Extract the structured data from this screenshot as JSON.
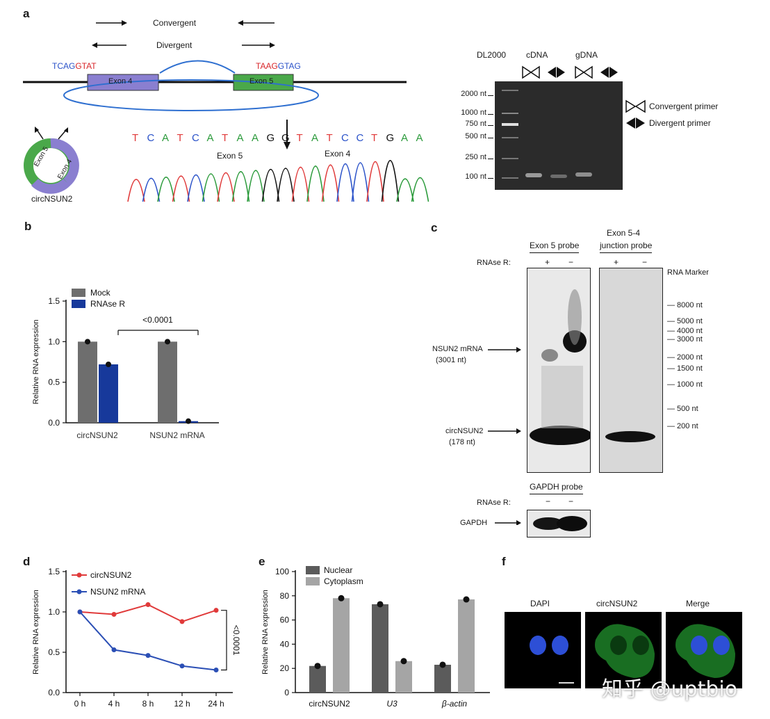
{
  "panels": {
    "a": "a",
    "b": "b",
    "c": "c",
    "d": "d",
    "e": "e",
    "f": "f"
  },
  "panel_a": {
    "convergent": "Convergent",
    "divergent": "Divergent",
    "seq_left": [
      "TCAG",
      "GTAT"
    ],
    "seq_right": [
      "TAAG",
      "GTAG"
    ],
    "exon4": "Exon 4",
    "exon5": "Exon 5",
    "circle_exon5": "Exon 5",
    "circle_exon4": "Exon 4",
    "circ_name": "circNSUN2",
    "sequence": [
      "T",
      "C",
      "A",
      "T",
      "C",
      "A",
      "T",
      "A",
      "A",
      "G",
      "G",
      "T",
      "A",
      "T",
      "C",
      "C",
      "T",
      "G",
      "A",
      "A"
    ],
    "chrom_exon5": "Exon 5",
    "chrom_exon4": "Exon 4",
    "gel_header": {
      "marker": "DL2000",
      "cdna": "cDNA",
      "gdna": "gDNA"
    },
    "gel_sizes": [
      "2000 nt",
      "1000 nt",
      "750 nt",
      "500 nt",
      "250 nt",
      "100 nt"
    ],
    "legend_convergent": "Convergent primer",
    "legend_divergent": "Divergent primer"
  },
  "panel_c": {
    "exon5_probe": "Exon 5 probe",
    "junction_probe_l1": "Exon 5-4",
    "junction_probe_l2": "junction probe",
    "rnase_label": "RNAse R:",
    "plus": "+",
    "minus": "−",
    "rna_marker": "RNA Marker",
    "sizes": [
      "8000 nt",
      "5000 nt",
      "4000 nt",
      "3000 nt",
      "2000 nt",
      "1500 nt",
      "1000 nt",
      "500 nt",
      "200 nt"
    ],
    "mrna_l1": "NSUN2 mRNA",
    "mrna_l2": "(3001 nt)",
    "circ_l1": "circNSUN2",
    "circ_l2": "(178 nt)",
    "gapdh_probe": "GAPDH probe",
    "gapdh_rnase": "RNAse R:",
    "gapdh": "GAPDH"
  },
  "panel_f": {
    "dapi": "DAPI",
    "circ": "circNSUN2",
    "merge": "Merge"
  },
  "watermark": "知乎 @uptbio",
  "chart_data": [
    {
      "id": "b",
      "type": "bar",
      "categories": [
        "circNSUN2",
        "NSUN2 mRNA"
      ],
      "series": [
        {
          "name": "Mock",
          "values": [
            1.0,
            1.0
          ],
          "color": "#6e6e6e"
        },
        {
          "name": "RNAse R",
          "values": [
            0.72,
            0.02
          ],
          "color": "#17399b"
        }
      ],
      "ylabel": "Relative RNA expression",
      "ylim": [
        0,
        1.5
      ],
      "yticks": [
        "0.0",
        "0.5",
        "1.0",
        "1.5"
      ],
      "annotation": "<0.0001",
      "legend": "top-left"
    },
    {
      "id": "d",
      "type": "line",
      "x": [
        "0 h",
        "4 h",
        "8 h",
        "12 h",
        "24 h"
      ],
      "series": [
        {
          "name": "circNSUN2",
          "values": [
            1.0,
            0.97,
            1.09,
            0.88,
            1.02
          ],
          "color": "#e03a3a"
        },
        {
          "name": "NSUN2 mRNA",
          "values": [
            1.0,
            0.53,
            0.46,
            0.33,
            0.28
          ],
          "color": "#2b4fb5"
        }
      ],
      "ylabel": "Relative RNA expression",
      "ylim": [
        0,
        1.5
      ],
      "yticks": [
        "0.0",
        "0.5",
        "1.0",
        "1.5"
      ],
      "annotation": "<0.0001",
      "legend": "top-left"
    },
    {
      "id": "e",
      "type": "bar",
      "categories": [
        "circNSUN2",
        "U3",
        "β-actin"
      ],
      "series": [
        {
          "name": "Nuclear",
          "values": [
            22,
            73,
            23
          ],
          "color": "#5b5b5b"
        },
        {
          "name": "Cytoplasm",
          "values": [
            78,
            26,
            77
          ],
          "color": "#a5a5a5"
        }
      ],
      "ylabel": "Relative RNA expression",
      "ylim": [
        0,
        100
      ],
      "yticks": [
        "0",
        "20",
        "40",
        "60",
        "80",
        "100"
      ],
      "legend": "top-left"
    }
  ]
}
